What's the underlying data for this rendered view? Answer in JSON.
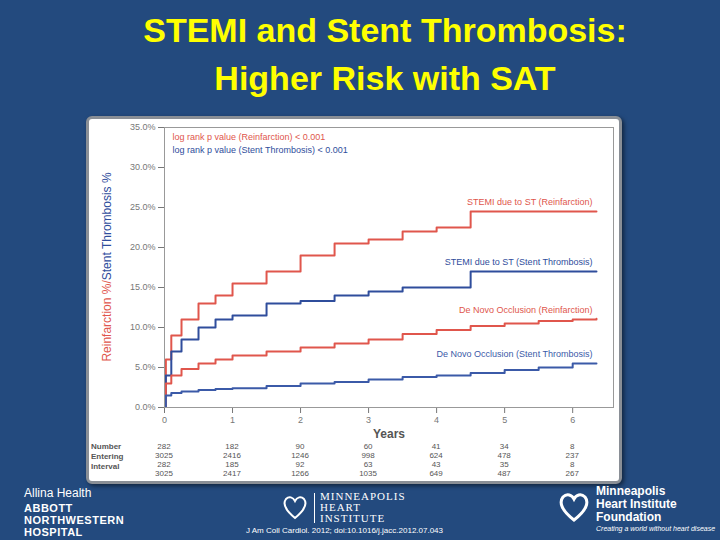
{
  "chart_data": {
    "type": "line",
    "title": "STEMI and Stent Thrombosis: Higher Risk with SAT",
    "xlabel": "Years",
    "ylabel_parts": [
      {
        "text": "Reinfarction %/",
        "color": "#e0564c"
      },
      {
        "text": "Stent Thrombosis %",
        "color": "#2f4d9c"
      }
    ],
    "annotations": [
      {
        "text": "log rank p value (Reinfarction) < 0.001",
        "color": "#e0564c"
      },
      {
        "text": "log rank p value (Stent Thrombosis) < 0.001",
        "color": "#2f4d9c"
      }
    ],
    "xlim": [
      0,
      6.6
    ],
    "xticks": [
      0,
      1,
      2,
      3,
      4,
      5,
      6
    ],
    "ylim": [
      0,
      35
    ],
    "yticks": [
      {
        "value": 0,
        "label": "0.0%"
      },
      {
        "value": 5,
        "label": "5.0%"
      },
      {
        "value": 10,
        "label": "10.0%"
      },
      {
        "value": 15,
        "label": "15.0%"
      },
      {
        "value": 20,
        "label": "20.0%"
      },
      {
        "value": 25,
        "label": "25.0%"
      },
      {
        "value": 30,
        "label": "30.0%"
      },
      {
        "value": 35,
        "label": "35.0%"
      }
    ],
    "grid": false,
    "x": [
      0,
      0.02,
      0.1,
      0.25,
      0.5,
      0.75,
      1,
      1.5,
      2,
      2.5,
      3,
      3.5,
      4,
      4.5,
      5,
      5.5,
      6,
      6.35
    ],
    "series": [
      {
        "name": "STEMI due to ST (Reinfarction)",
        "color": "#e0564c",
        "values": [
          0,
          6,
          9,
          11,
          13,
          14,
          15.5,
          17,
          19,
          20.5,
          21,
          22,
          22.5,
          24.5,
          24.5,
          24.5,
          24.5,
          24.5
        ]
      },
      {
        "name": "STEMI due to ST (Stent Thrombosis)",
        "color": "#2f4d9c",
        "values": [
          0,
          4,
          7,
          8.5,
          10,
          11,
          11.5,
          13,
          13.3,
          14,
          14.5,
          15,
          15,
          17,
          17,
          17,
          17,
          17
        ]
      },
      {
        "name": "De Novo Occlusion (Reinfarction)",
        "color": "#e0564c",
        "values": [
          0,
          3,
          4,
          4.8,
          5.5,
          6,
          6.5,
          7,
          7.5,
          8,
          8.5,
          9.2,
          9.7,
          10.2,
          10.5,
          10.8,
          11,
          11.1
        ]
      },
      {
        "name": "De Novo Occlusion (Stent Thrombosis)",
        "color": "#3b5aa8",
        "values": [
          0,
          1.5,
          1.8,
          2,
          2.2,
          2.3,
          2.4,
          2.7,
          3,
          3.2,
          3.5,
          3.8,
          4,
          4.3,
          4.7,
          5,
          5.5,
          5.5
        ]
      }
    ],
    "risk_table": {
      "label": "Number Entering Interval",
      "x": [
        0,
        1,
        2,
        3,
        4,
        5,
        6
      ],
      "rows": [
        [
          282,
          182,
          90,
          60,
          41,
          34,
          8
        ],
        [
          3025,
          2416,
          1246,
          998,
          624,
          478,
          237
        ],
        [
          282,
          185,
          92,
          63,
          43,
          35,
          8
        ],
        [
          3025,
          2417,
          1266,
          1035,
          649,
          487,
          267
        ]
      ]
    }
  },
  "slide": {
    "footer_left_small": "Allina Health",
    "footer_left": [
      "ABBOTT",
      "NORTHWESTERN",
      "HOSPITAL"
    ],
    "footer_center": [
      "MINNEAPOLIS",
      "HEART",
      "INSTITUTE"
    ],
    "citation": "J Am Coll Cardiol. 2012; doi:10.1016/j.jacc.2012.07.043",
    "footer_right": [
      "Minneapolis",
      "Heart Institute",
      "Foundation"
    ],
    "tagline": "Creating a world without heart disease"
  }
}
